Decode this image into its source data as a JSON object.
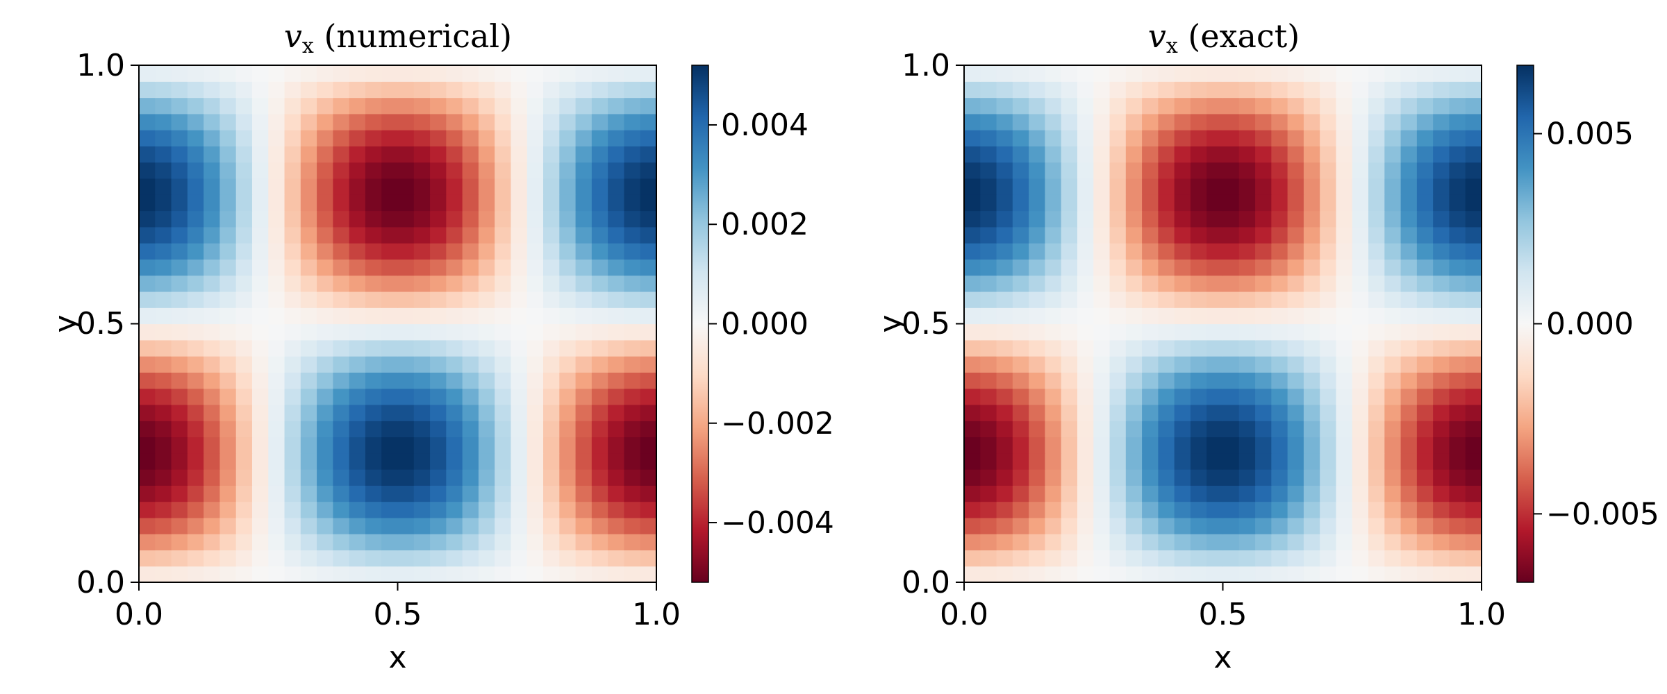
{
  "chart_data": [
    {
      "type": "heatmap",
      "title_var": "v",
      "title_sub": "x",
      "title_rest": " (numerical)",
      "xlabel": "x",
      "ylabel": "y",
      "xlim": [
        0.0,
        1.0
      ],
      "ylim": [
        0.0,
        1.0
      ],
      "xticks": [
        "0.0",
        "0.5",
        "1.0"
      ],
      "yticks": [
        "0.0",
        "0.5",
        "1.0"
      ],
      "grid": [
        32,
        32
      ],
      "field": "amp * sin(2*pi*x + pi/2) * sin(2*pi*y - pi) sampled at cell centers",
      "amplitude": 0.0052,
      "colorbar": {
        "limits": [
          -0.0052,
          0.0052
        ],
        "colormap": "RdBu",
        "ticks": [
          -0.004,
          -0.002,
          0.0,
          0.002,
          0.004
        ],
        "tick_labels": [
          "−0.004",
          "−0.002",
          "0.000",
          "0.002",
          "0.004"
        ]
      }
    },
    {
      "type": "heatmap",
      "title_var": "v",
      "title_sub": "x",
      "title_rest": " (exact)",
      "xlabel": "x",
      "ylabel": "y",
      "xlim": [
        0.0,
        1.0
      ],
      "ylim": [
        0.0,
        1.0
      ],
      "xticks": [
        "0.0",
        "0.5",
        "1.0"
      ],
      "yticks": [
        "0.0",
        "0.5",
        "1.0"
      ],
      "grid": [
        32,
        32
      ],
      "field": "amp * cos(2*pi*x) * sin(2*pi*y) sampled at cell centers (sign flipped)",
      "amplitude": 0.0068,
      "colorbar": {
        "limits": [
          -0.0068,
          0.0068
        ],
        "colormap": "RdBu",
        "ticks": [
          -0.005,
          0.0,
          0.005
        ],
        "tick_labels": [
          "−0.005",
          "0.000",
          "0.005"
        ]
      }
    }
  ]
}
